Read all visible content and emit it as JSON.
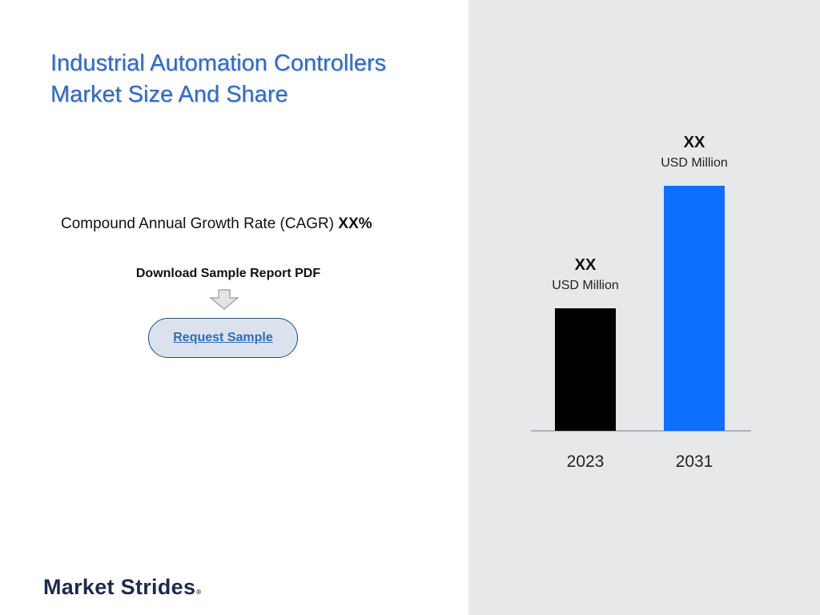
{
  "title": {
    "line1": "Industrial Automation Controllers",
    "line2": "Market Size And Share"
  },
  "cagr": {
    "label": "Compound Annual Growth Rate (CAGR) ",
    "value": "XX%"
  },
  "download": {
    "label": "Download Sample Report PDF",
    "button_label": "Request Sample"
  },
  "brand": {
    "name": "Market Strides",
    "mark": "®"
  },
  "colors": {
    "title": "#2e6bc4",
    "bar_2023": "#000000",
    "bar_2031": "#0f6fff",
    "panel_bg": "#e7e8ea"
  },
  "icons": {
    "download_arrow": "down-arrow-icon"
  },
  "chart_data": {
    "type": "bar",
    "categories": [
      "2023",
      "2031"
    ],
    "values": [
      50,
      100
    ],
    "value_labels": [
      "XX",
      "XX"
    ],
    "unit_labels": [
      "USD Million",
      "USD Million"
    ],
    "grid": false,
    "legend": "none"
  }
}
